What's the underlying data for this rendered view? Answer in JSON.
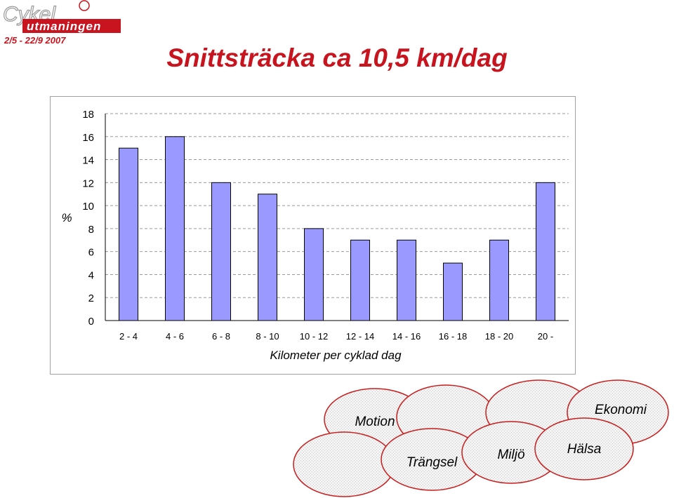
{
  "logo": {
    "line1": "Cykel",
    "line2": "utmaningen",
    "dates": "2/5 - 22/9 2007"
  },
  "title": "Snittsträcka ca 10,5 km/dag",
  "chart_data": {
    "type": "bar",
    "categories": [
      "2 - 4",
      "4 - 6",
      "6 - 8",
      "8 - 10",
      "10 - 12",
      "12 - 14",
      "14 - 16",
      "16 - 18",
      "18 - 20",
      "20 -"
    ],
    "values": [
      15,
      16,
      12,
      11,
      8,
      7,
      7,
      5,
      7,
      12
    ],
    "xlabel": "Kilometer per cyklad dag",
    "ylabel": "%",
    "ylim": [
      0,
      18
    ],
    "yticks": [
      0,
      2,
      4,
      6,
      8,
      10,
      12,
      14,
      16,
      18
    ],
    "grid": true,
    "bar_color": "#9999ff"
  },
  "circles": {
    "labels": [
      "Motion",
      "Ekonomi",
      "Trängsel",
      "Miljö",
      "Hälsa"
    ]
  },
  "colors": {
    "title": "#c8141e",
    "circle_stroke": "#c81e1e",
    "circle_fill": "#ececec"
  }
}
